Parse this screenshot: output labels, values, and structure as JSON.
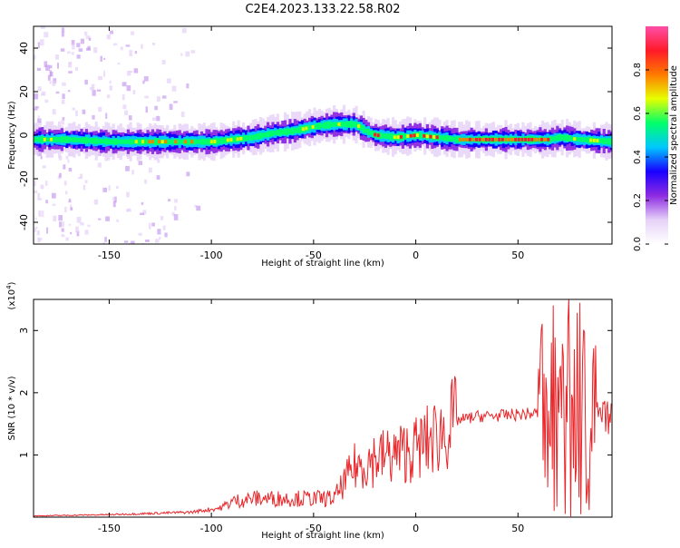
{
  "page": {
    "title": "C2E4.2023.133.22.58.R02"
  },
  "chart_data": [
    {
      "type": "heatmap",
      "title": "C2E4.2023.133.22.58.R02",
      "xlabel": "Height of straight line (km)",
      "ylabel": "Frequency (Hz)",
      "xlim": [
        -187,
        96
      ],
      "ylim": [
        -50,
        50
      ],
      "x_ticks": [
        -150,
        -100,
        -50,
        0,
        50
      ],
      "y_ticks": [
        -40,
        -20,
        0,
        20,
        40
      ],
      "ridge": {
        "x": [
          -187,
          -170,
          -150,
          -130,
          -110,
          -100,
          -90,
          -80,
          -70,
          -60,
          -50,
          -40,
          -30,
          -25,
          -20,
          -10,
          0,
          10,
          20,
          30,
          50,
          65,
          70,
          80,
          96
        ],
        "y": [
          -2,
          -2,
          -3,
          -3,
          -3,
          -3,
          -2,
          -1,
          1,
          2,
          4,
          5,
          5,
          2,
          0,
          -1,
          0,
          -1,
          -2,
          -2,
          -2,
          -2,
          -1,
          -2,
          -3
        ]
      },
      "colorbar": {
        "label": "Normalized spectral amplitude",
        "range": [
          0,
          1
        ],
        "ticks": [
          "0.0",
          "0.2",
          "0.4",
          "0.6",
          "0.8"
        ],
        "tick_values": [
          0,
          0.2,
          0.4,
          0.6,
          0.8
        ],
        "colormap": [
          "#ffffff",
          "#e6d2f8",
          "#8e2be2",
          "#1800ff",
          "#00c8ff",
          "#00ff6a",
          "#e6ff00",
          "#ff7a00",
          "#ff1a28",
          "#ff4fa8"
        ]
      }
    },
    {
      "type": "line",
      "xlabel": "Height of straight line (km)",
      "ylabel": "SNR (10 * v/v)",
      "y_multiplier_label": "(x10",
      "y_multiplier_exp": "4",
      "xlim": [
        -187,
        96
      ],
      "ylim": [
        0,
        3.5
      ],
      "x_ticks": [
        -150,
        -100,
        -50,
        0,
        50
      ],
      "y_ticks": [
        1,
        2,
        3
      ],
      "color": "#e8262a",
      "envelope": {
        "x": [
          -187,
          -150,
          -110,
          -95,
          -90,
          -80,
          -60,
          -40,
          -35,
          -30,
          -20,
          -10,
          0,
          10,
          20,
          30,
          40,
          50,
          60,
          65,
          70,
          75,
          80,
          85,
          90,
          96
        ],
        "y": [
          0.02,
          0.04,
          0.08,
          0.15,
          0.25,
          0.3,
          0.3,
          0.3,
          0.55,
          0.8,
          0.95,
          1.0,
          1.1,
          1.3,
          1.55,
          1.62,
          1.63,
          1.65,
          1.67,
          1.6,
          1.7,
          1.85,
          1.7,
          1.6,
          1.6,
          1.6
        ]
      }
    }
  ]
}
